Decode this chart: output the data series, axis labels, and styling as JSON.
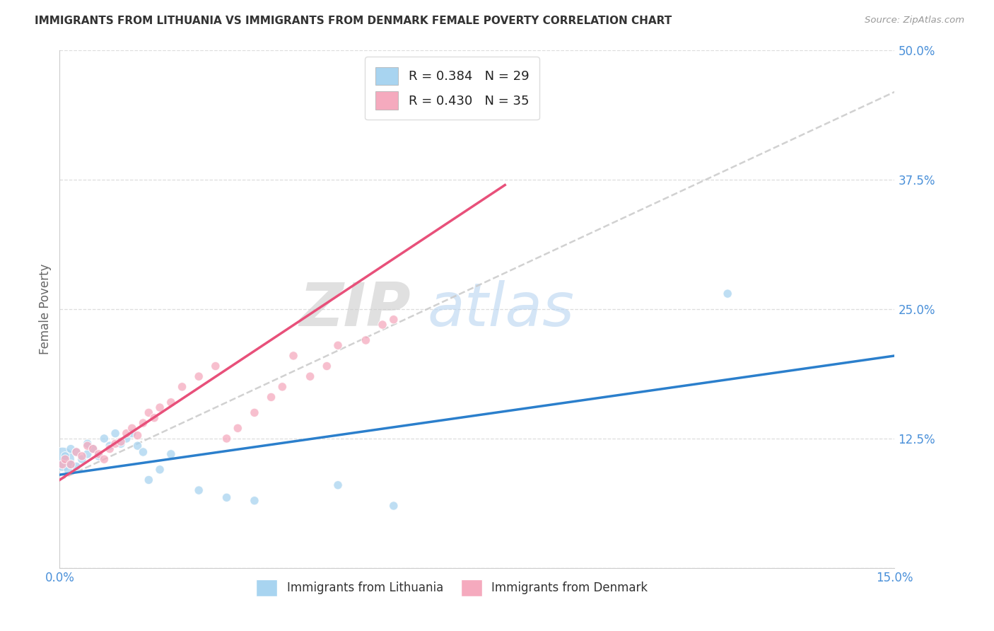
{
  "title": "IMMIGRANTS FROM LITHUANIA VS IMMIGRANTS FROM DENMARK FEMALE POVERTY CORRELATION CHART",
  "source": "Source: ZipAtlas.com",
  "ylabel": "Female Poverty",
  "xlim": [
    0.0,
    0.15
  ],
  "ylim": [
    0.0,
    0.5
  ],
  "xticks": [
    0.0,
    0.03,
    0.06,
    0.09,
    0.12,
    0.15
  ],
  "xticklabels": [
    "0.0%",
    "",
    "",
    "",
    "",
    "15.0%"
  ],
  "yticks": [
    0.0,
    0.125,
    0.25,
    0.375,
    0.5
  ],
  "yticklabels": [
    "",
    "12.5%",
    "25.0%",
    "37.5%",
    "50.0%"
  ],
  "lithuania_R": 0.384,
  "lithuania_N": 29,
  "denmark_R": 0.43,
  "denmark_N": 35,
  "legend_labels": [
    "Immigrants from Lithuania",
    "Immigrants from Denmark"
  ],
  "lithuania_color": "#A8D4F0",
  "denmark_color": "#F5AABE",
  "trend_lithuania_color": "#2B7FCC",
  "trend_denmark_color": "#E8507A",
  "trend_dashed_color": "#CCCCCC",
  "watermark_zip": "ZIP",
  "watermark_atlas": "atlas",
  "lithuania_x": [
    0.0005,
    0.001,
    0.0015,
    0.002,
    0.002,
    0.003,
    0.003,
    0.004,
    0.005,
    0.005,
    0.006,
    0.007,
    0.008,
    0.009,
    0.01,
    0.011,
    0.012,
    0.013,
    0.014,
    0.015,
    0.016,
    0.018,
    0.02,
    0.025,
    0.03,
    0.035,
    0.05,
    0.06,
    0.12
  ],
  "lithuania_y": [
    0.105,
    0.108,
    0.095,
    0.1,
    0.115,
    0.098,
    0.112,
    0.105,
    0.11,
    0.12,
    0.115,
    0.108,
    0.125,
    0.118,
    0.13,
    0.12,
    0.125,
    0.13,
    0.118,
    0.112,
    0.085,
    0.095,
    0.11,
    0.075,
    0.068,
    0.065,
    0.08,
    0.06,
    0.265
  ],
  "lithuania_sizes": [
    600,
    80,
    80,
    80,
    80,
    80,
    80,
    80,
    80,
    80,
    80,
    80,
    80,
    80,
    80,
    80,
    80,
    80,
    80,
    80,
    80,
    80,
    80,
    80,
    80,
    80,
    80,
    80,
    80
  ],
  "denmark_x": [
    0.0005,
    0.001,
    0.002,
    0.003,
    0.004,
    0.005,
    0.006,
    0.007,
    0.008,
    0.009,
    0.01,
    0.011,
    0.012,
    0.013,
    0.014,
    0.015,
    0.016,
    0.017,
    0.018,
    0.02,
    0.022,
    0.025,
    0.028,
    0.03,
    0.032,
    0.035,
    0.038,
    0.04,
    0.042,
    0.045,
    0.048,
    0.05,
    0.055,
    0.058,
    0.06
  ],
  "denmark_y": [
    0.1,
    0.105,
    0.1,
    0.112,
    0.108,
    0.118,
    0.115,
    0.11,
    0.105,
    0.115,
    0.12,
    0.122,
    0.13,
    0.135,
    0.128,
    0.14,
    0.15,
    0.145,
    0.155,
    0.16,
    0.175,
    0.185,
    0.195,
    0.125,
    0.135,
    0.15,
    0.165,
    0.175,
    0.205,
    0.185,
    0.195,
    0.215,
    0.22,
    0.235,
    0.24
  ],
  "denmark_sizes": [
    80,
    80,
    80,
    80,
    80,
    80,
    80,
    80,
    80,
    80,
    80,
    80,
    80,
    80,
    80,
    80,
    80,
    80,
    80,
    80,
    80,
    80,
    80,
    80,
    80,
    80,
    80,
    80,
    80,
    80,
    80,
    80,
    80,
    80,
    80
  ],
  "trend_lith_x0": 0.0,
  "trend_lith_y0": 0.09,
  "trend_lith_x1": 0.15,
  "trend_lith_y1": 0.205,
  "trend_den_x0": 0.0,
  "trend_den_y0": 0.085,
  "trend_den_x1": 0.08,
  "trend_den_y1": 0.37,
  "trend_dash_x0": 0.0,
  "trend_dash_y0": 0.085,
  "trend_dash_x1": 0.15,
  "trend_dash_y1": 0.46
}
